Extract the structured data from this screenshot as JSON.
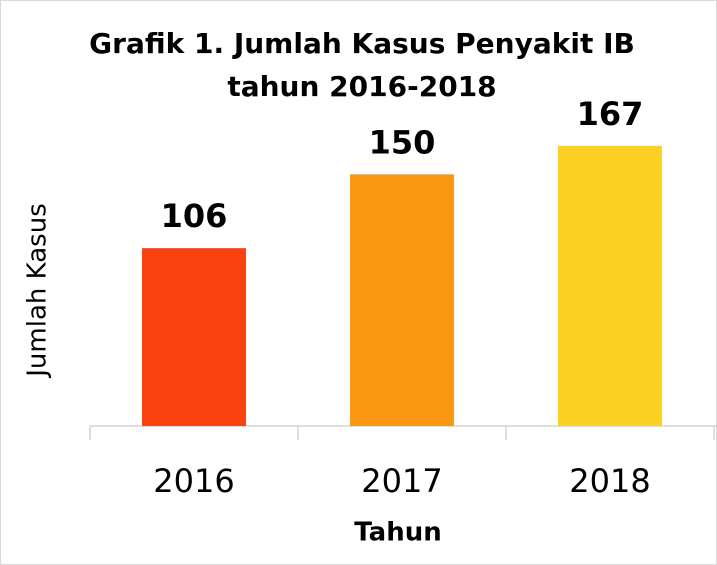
{
  "chart_data": {
    "type": "bar",
    "title": "Grafik 1. Jumlah Kasus Penyakit IB",
    "subtitle": "tahun 2016-2018",
    "x_label": "Tahun",
    "y_label": "Jumlah Kasus",
    "categories": [
      "2016",
      "2017",
      "2018"
    ],
    "values": [
      106,
      150,
      167
    ],
    "colors": [
      "#f8420f",
      "#f99612",
      "#fcd123"
    ],
    "ylim": [
      0,
      180
    ]
  }
}
